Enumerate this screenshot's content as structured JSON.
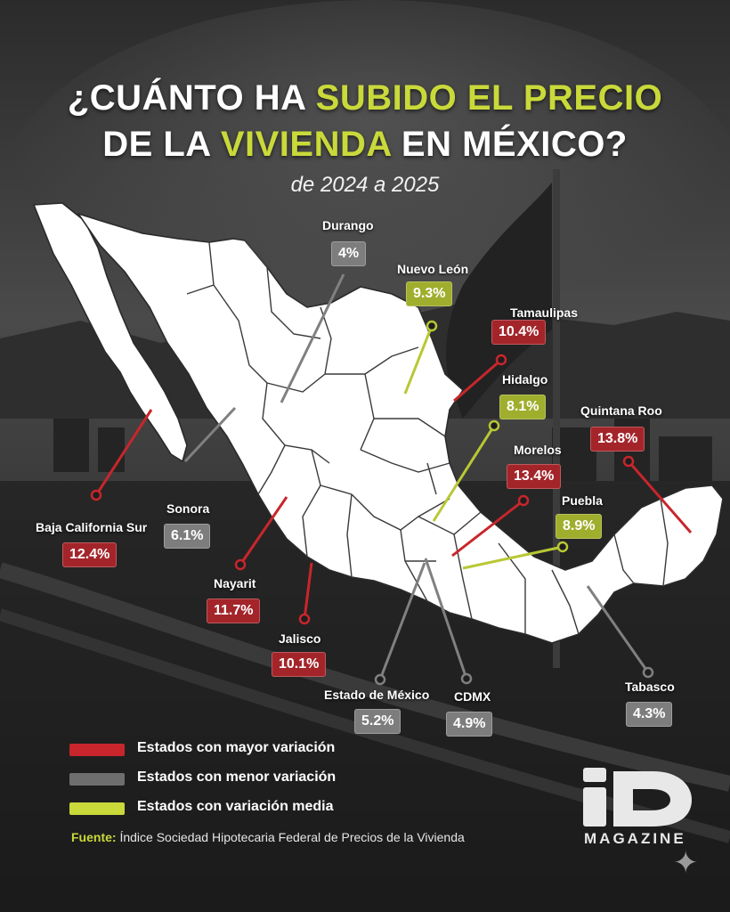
{
  "title": {
    "line1_a": "¿CUÁNTO HA ",
    "line1_hl": "SUBIDO EL PRECIO",
    "line2_a": "DE LA ",
    "line2_hl": "VIVIENDA",
    "line2_b": " EN MÉXICO?",
    "subtitle": "de 2024 a 2025"
  },
  "states": [
    {
      "key": "durango",
      "name": "Durango",
      "value": "4%",
      "category": "menor"
    },
    {
      "key": "nuevo_leon",
      "name": "Nuevo León",
      "value": "9.3%",
      "category": "media"
    },
    {
      "key": "tamaulipas",
      "name": "Tamaulipas",
      "value": "10.4%",
      "category": "mayor"
    },
    {
      "key": "hidalgo",
      "name": "Hidalgo",
      "value": "8.1%",
      "category": "media"
    },
    {
      "key": "quintana_roo",
      "name": "Quintana Roo",
      "value": "13.8%",
      "category": "mayor"
    },
    {
      "key": "morelos",
      "name": "Morelos",
      "value": "13.4%",
      "category": "mayor"
    },
    {
      "key": "puebla",
      "name": "Puebla",
      "value": "8.9%",
      "category": "media"
    },
    {
      "key": "sonora",
      "name": "Sonora",
      "value": "6.1%",
      "category": "menor"
    },
    {
      "key": "baja_california_sur",
      "name": "Baja California Sur",
      "value": "12.4%",
      "category": "mayor"
    },
    {
      "key": "nayarit",
      "name": "Nayarit",
      "value": "11.7%",
      "category": "mayor"
    },
    {
      "key": "jalisco",
      "name": "Jalisco",
      "value": "10.1%",
      "category": "mayor"
    },
    {
      "key": "estado_de_mexico",
      "name": "Estado de México",
      "value": "5.2%",
      "category": "menor"
    },
    {
      "key": "cdmx",
      "name": "CDMX",
      "value": "4.9%",
      "category": "menor"
    },
    {
      "key": "tabasco",
      "name": "Tabasco",
      "value": "4.3%",
      "category": "menor"
    }
  ],
  "legend": [
    {
      "label": "Estados con mayor variación",
      "color": "#c8262c"
    },
    {
      "label": "Estados con menor variación",
      "color": "#6e6e6e"
    },
    {
      "label": "Estados con variación media",
      "color": "#c9d93a"
    }
  ],
  "colors": {
    "mayor": "#c8262c",
    "menor": "#808080",
    "media": "#b8c834",
    "highlight": "#c9d93a"
  },
  "source": {
    "label": "Fuente:",
    "text": " Índice Sociedad Hipotecaria Federal de Precios de la Vivienda"
  },
  "brand": {
    "logo_text": "iD",
    "magazine": "MAGAZINE"
  }
}
